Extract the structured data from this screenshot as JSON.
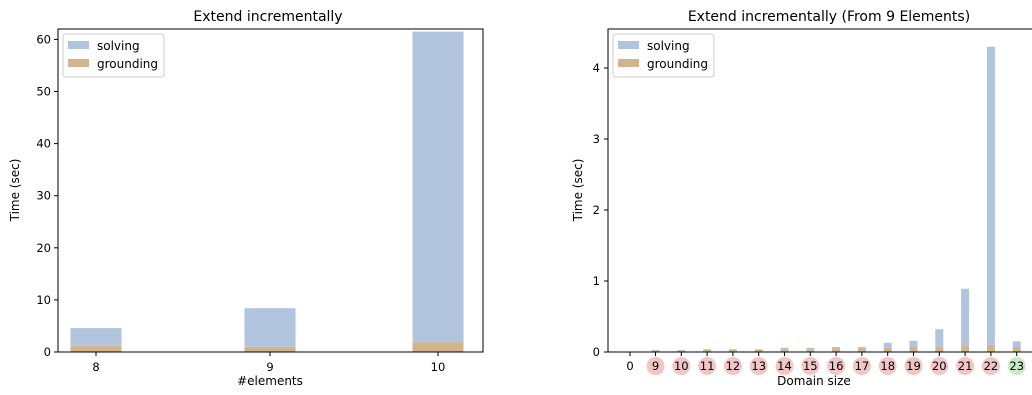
{
  "chart_data": [
    {
      "type": "bar",
      "stacked": true,
      "title": "Extend incrementally",
      "xlabel": "#elements",
      "ylabel": "Time (sec)",
      "categories": [
        "8",
        "9",
        "10"
      ],
      "x": [
        8,
        9,
        10
      ],
      "ylim": [
        0,
        62
      ],
      "yticks": [
        0,
        10,
        20,
        30,
        40,
        50,
        60
      ],
      "series": [
        {
          "name": "solving",
          "values": [
            3.4,
            7.4,
            59.6
          ],
          "color": "#b0c4de"
        },
        {
          "name": "grounding",
          "values": [
            1.2,
            1.0,
            1.9
          ],
          "color": "#d2b48c"
        }
      ],
      "legend": {
        "placement": "top-left",
        "entries": [
          "solving",
          "grounding"
        ]
      },
      "grid": false
    },
    {
      "type": "bar",
      "stacked": true,
      "title": "Extend incrementally (From 9 Elements)",
      "xlabel": "Domain size",
      "ylabel": "Time (sec)",
      "x": [
        0,
        9,
        10,
        11,
        12,
        13,
        14,
        15,
        16,
        17,
        18,
        19,
        20,
        21,
        22,
        23
      ],
      "categories": [
        "0",
        "9",
        "10",
        "11",
        "12",
        "13",
        "14",
        "15",
        "16",
        "17",
        "18",
        "19",
        "20",
        "21",
        "22",
        "23"
      ],
      "xlim": [
        -0.6,
        23.4
      ],
      "ylim": [
        0,
        4.5
      ],
      "yticks": [
        0,
        1,
        2,
        3,
        4
      ],
      "series": [
        {
          "name": "solving",
          "values": [
            0,
            0.01,
            0.01,
            0.01,
            0.01,
            0.01,
            0.02,
            0.02,
            0.02,
            0.02,
            0.07,
            0.09,
            0.24,
            0.8,
            4.2,
            0.08
          ],
          "color": "#b0c4de"
        },
        {
          "name": "grounding",
          "values": [
            0,
            0.02,
            0.02,
            0.03,
            0.03,
            0.03,
            0.04,
            0.04,
            0.05,
            0.05,
            0.06,
            0.07,
            0.08,
            0.09,
            0.1,
            0.07
          ],
          "color": "#d2b48c"
        }
      ],
      "tick_highlight": {
        "9": "#f2c6c6",
        "10": "#f2c6c6",
        "11": "#f2c6c6",
        "12": "#f2c6c6",
        "13": "#f2c6c6",
        "14": "#f2c6c6",
        "15": "#f2c6c6",
        "16": "#f2c6c6",
        "17": "#f2c6c6",
        "18": "#f2c6c6",
        "19": "#f2c6c6",
        "20": "#f2c6c6",
        "21": "#f2c6c6",
        "22": "#f2c6c6",
        "23": "#c6ecc6"
      },
      "legend": {
        "placement": "top-left",
        "entries": [
          "solving",
          "grounding"
        ]
      },
      "grid": false
    }
  ]
}
